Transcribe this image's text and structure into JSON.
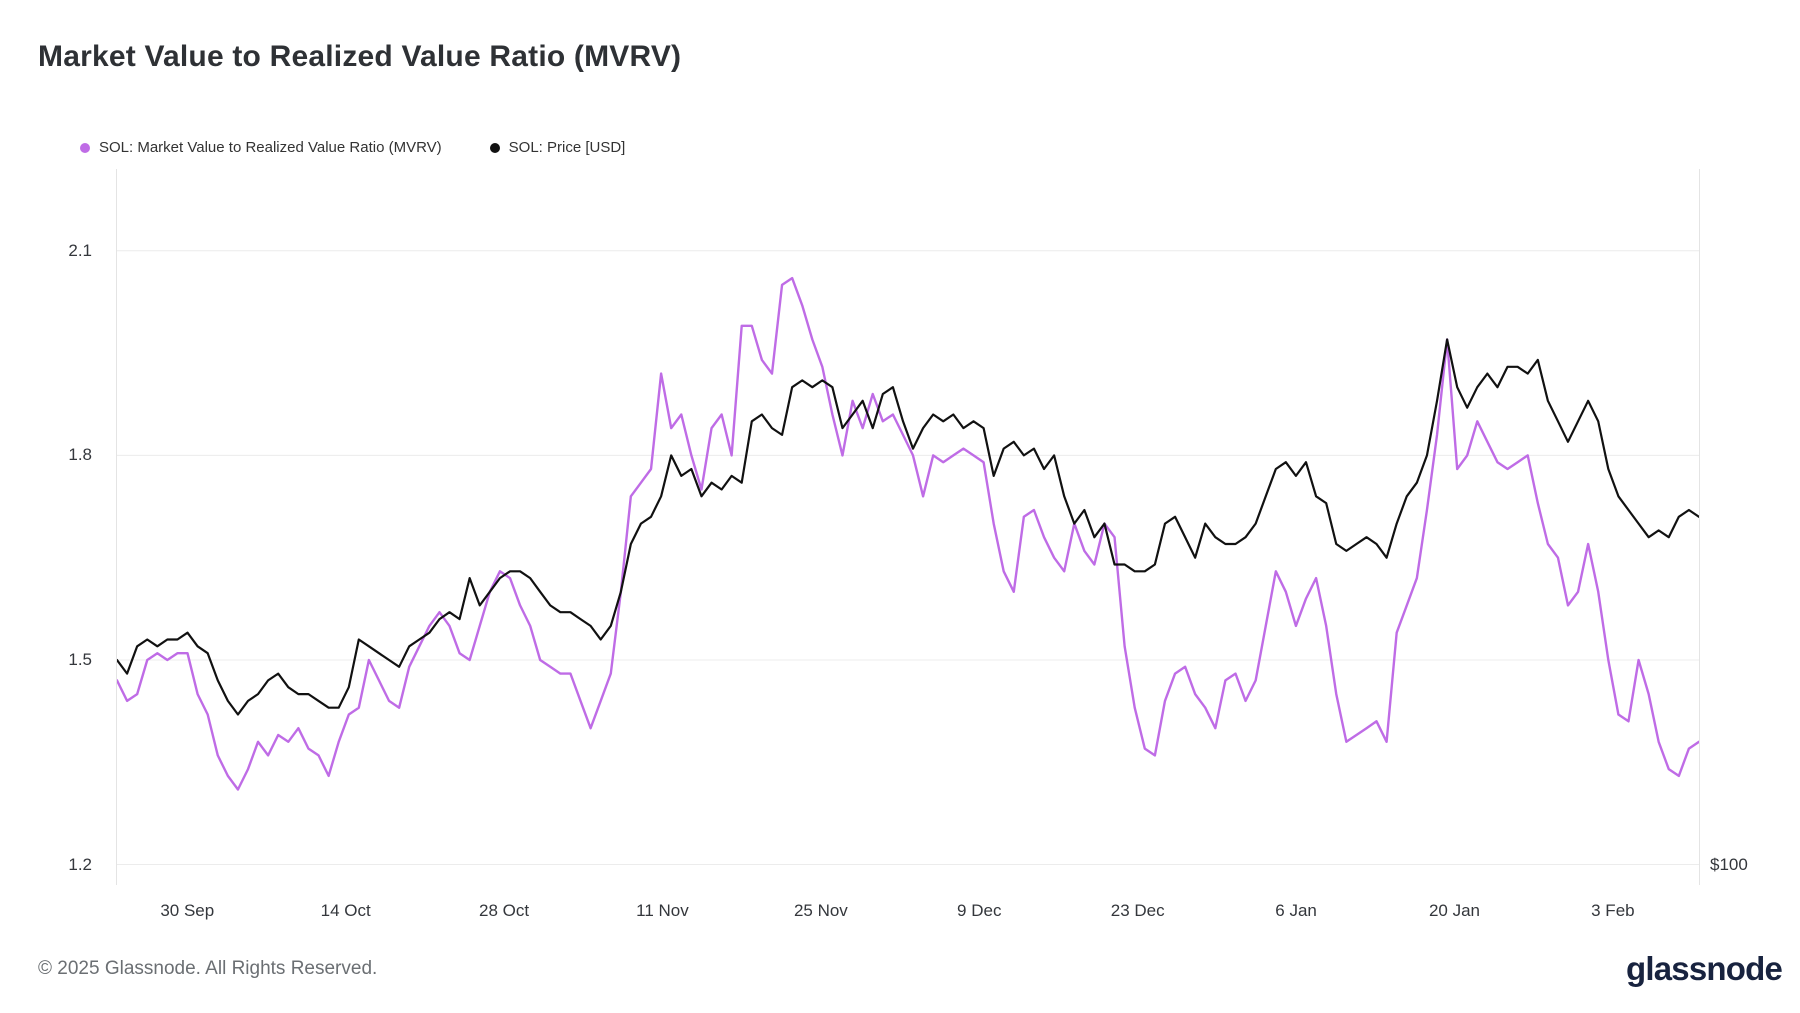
{
  "header": {
    "title": "Market Value to Realized Value Ratio (MVRV)"
  },
  "legend": [
    {
      "label": "SOL: Market Value to Realized Value Ratio (MVRV)",
      "color": "#bf6ce6"
    },
    {
      "label": "SOL: Price [USD]",
      "color": "#111111"
    }
  ],
  "footer": {
    "copyright": "© 2025 Glassnode. All Rights Reserved.",
    "brand": "glassnode"
  },
  "chart_data": {
    "type": "line",
    "title": "Market Value to Realized Value Ratio (MVRV)",
    "grid": "horizontal",
    "legend_position": "top-left",
    "y_axis_left": {
      "ticks": [
        2.1,
        1.8,
        1.5,
        1.2
      ],
      "range": [
        1.17,
        2.22
      ]
    },
    "y_axis_right": {
      "label": "$100",
      "at_value": 1.2
    },
    "x_ticks": [
      {
        "label": "30 Sep",
        "pos": 0.045
      },
      {
        "label": "14 Oct",
        "pos": 0.145
      },
      {
        "label": "28 Oct",
        "pos": 0.245
      },
      {
        "label": "11 Nov",
        "pos": 0.345
      },
      {
        "label": "25 Nov",
        "pos": 0.445
      },
      {
        "label": "9 Dec",
        "pos": 0.545
      },
      {
        "label": "23 Dec",
        "pos": 0.645
      },
      {
        "label": "6 Jan",
        "pos": 0.745
      },
      {
        "label": "20 Jan",
        "pos": 0.845
      },
      {
        "label": "3 Feb",
        "pos": 0.945
      }
    ],
    "series": [
      {
        "name": "SOL: Market Value to Realized Value Ratio (MVRV)",
        "color": "#bf6ce6",
        "axis": "left",
        "values": [
          1.47,
          1.44,
          1.45,
          1.5,
          1.51,
          1.5,
          1.51,
          1.51,
          1.45,
          1.42,
          1.36,
          1.33,
          1.31,
          1.34,
          1.38,
          1.36,
          1.39,
          1.38,
          1.4,
          1.37,
          1.36,
          1.33,
          1.38,
          1.42,
          1.43,
          1.5,
          1.47,
          1.44,
          1.43,
          1.49,
          1.52,
          1.55,
          1.57,
          1.55,
          1.51,
          1.5,
          1.55,
          1.6,
          1.63,
          1.62,
          1.58,
          1.55,
          1.5,
          1.49,
          1.48,
          1.48,
          1.44,
          1.4,
          1.44,
          1.48,
          1.6,
          1.74,
          1.76,
          1.78,
          1.92,
          1.84,
          1.86,
          1.8,
          1.75,
          1.84,
          1.86,
          1.8,
          1.99,
          1.99,
          1.94,
          1.92,
          2.05,
          2.06,
          2.02,
          1.97,
          1.93,
          1.86,
          1.8,
          1.88,
          1.84,
          1.89,
          1.85,
          1.86,
          1.83,
          1.8,
          1.74,
          1.8,
          1.79,
          1.8,
          1.81,
          1.8,
          1.79,
          1.7,
          1.63,
          1.6,
          1.71,
          1.72,
          1.68,
          1.65,
          1.63,
          1.7,
          1.66,
          1.64,
          1.7,
          1.68,
          1.52,
          1.43,
          1.37,
          1.36,
          1.44,
          1.48,
          1.49,
          1.45,
          1.43,
          1.4,
          1.47,
          1.48,
          1.44,
          1.47,
          1.55,
          1.63,
          1.6,
          1.55,
          1.59,
          1.62,
          1.55,
          1.45,
          1.38,
          1.39,
          1.4,
          1.41,
          1.38,
          1.54,
          1.58,
          1.62,
          1.72,
          1.83,
          1.97,
          1.78,
          1.8,
          1.85,
          1.82,
          1.79,
          1.78,
          1.79,
          1.8,
          1.73,
          1.67,
          1.65,
          1.58,
          1.6,
          1.67,
          1.6,
          1.5,
          1.42,
          1.41,
          1.5,
          1.45,
          1.38,
          1.34,
          1.33,
          1.37,
          1.38
        ]
      },
      {
        "name": "SOL: Price [USD]",
        "color": "#111111",
        "axis": "right",
        "note": "Right price axis shows only '$100' at the bottom; values are given in left-axis-equivalent plot positions as drawn.",
        "values": [
          1.5,
          1.48,
          1.52,
          1.53,
          1.52,
          1.53,
          1.53,
          1.54,
          1.52,
          1.51,
          1.47,
          1.44,
          1.42,
          1.44,
          1.45,
          1.47,
          1.48,
          1.46,
          1.45,
          1.45,
          1.44,
          1.43,
          1.43,
          1.46,
          1.53,
          1.52,
          1.51,
          1.5,
          1.49,
          1.52,
          1.53,
          1.54,
          1.56,
          1.57,
          1.56,
          1.62,
          1.58,
          1.6,
          1.62,
          1.63,
          1.63,
          1.62,
          1.6,
          1.58,
          1.57,
          1.57,
          1.56,
          1.55,
          1.53,
          1.55,
          1.6,
          1.67,
          1.7,
          1.71,
          1.74,
          1.8,
          1.77,
          1.78,
          1.74,
          1.76,
          1.75,
          1.77,
          1.76,
          1.85,
          1.86,
          1.84,
          1.83,
          1.9,
          1.91,
          1.9,
          1.91,
          1.9,
          1.84,
          1.86,
          1.88,
          1.84,
          1.89,
          1.9,
          1.85,
          1.81,
          1.84,
          1.86,
          1.85,
          1.86,
          1.84,
          1.85,
          1.84,
          1.77,
          1.81,
          1.82,
          1.8,
          1.81,
          1.78,
          1.8,
          1.74,
          1.7,
          1.72,
          1.68,
          1.7,
          1.64,
          1.64,
          1.63,
          1.63,
          1.64,
          1.7,
          1.71,
          1.68,
          1.65,
          1.7,
          1.68,
          1.67,
          1.67,
          1.68,
          1.7,
          1.74,
          1.78,
          1.79,
          1.77,
          1.79,
          1.74,
          1.73,
          1.67,
          1.66,
          1.67,
          1.68,
          1.67,
          1.65,
          1.7,
          1.74,
          1.76,
          1.8,
          1.88,
          1.97,
          1.9,
          1.87,
          1.9,
          1.92,
          1.9,
          1.93,
          1.93,
          1.92,
          1.94,
          1.88,
          1.85,
          1.82,
          1.85,
          1.88,
          1.85,
          1.78,
          1.74,
          1.72,
          1.7,
          1.68,
          1.69,
          1.68,
          1.71,
          1.72,
          1.71
        ]
      }
    ]
  }
}
